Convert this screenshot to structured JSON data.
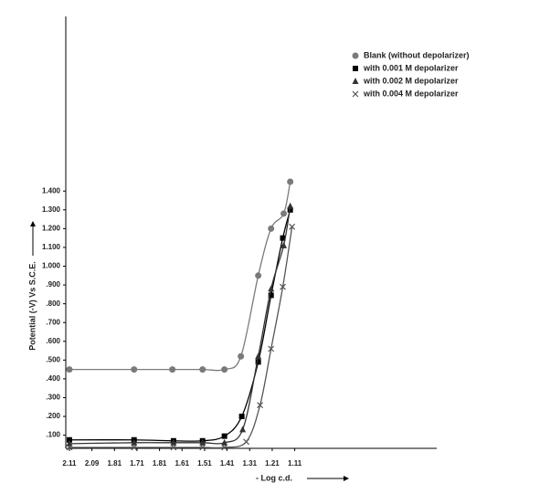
{
  "chart_data": {
    "type": "line",
    "x_label": "- Log c.d.",
    "y_label": "Potential (-V) Vs S.C.E.",
    "xlim": [
      -0.16,
      16.3
    ],
    "ylim": [
      0.03,
      2.33
    ],
    "xticks": [
      {
        "value": 0,
        "label": "2.11"
      },
      {
        "value": 1,
        "label": "2.09"
      },
      {
        "value": 2,
        "label": "1.81"
      },
      {
        "value": 3,
        "label": "1.71"
      },
      {
        "value": 4,
        "label": "1.81"
      },
      {
        "value": 5,
        "label": "1.61"
      },
      {
        "value": 6,
        "label": "1.51"
      },
      {
        "value": 7,
        "label": "1.41"
      },
      {
        "value": 8,
        "label": "1.31"
      },
      {
        "value": 9,
        "label": "1.21"
      },
      {
        "value": 10,
        "label": "1.11"
      }
    ],
    "yticks": [
      {
        "value": 0.1,
        "label": ".100"
      },
      {
        "value": 0.2,
        "label": ".200"
      },
      {
        "value": 0.3,
        "label": ".300"
      },
      {
        "value": 0.4,
        "label": ".400"
      },
      {
        "value": 0.5,
        "label": ".500"
      },
      {
        "value": 0.6,
        "label": ".600"
      },
      {
        "value": 0.7,
        "label": ".700"
      },
      {
        "value": 0.8,
        "label": ".800"
      },
      {
        "value": 0.9,
        "label": ".900"
      },
      {
        "value": 1.0,
        "label": "1.000"
      },
      {
        "value": 1.1,
        "label": "1.100"
      },
      {
        "value": 1.2,
        "label": "1.200"
      },
      {
        "value": 1.3,
        "label": "1.300"
      },
      {
        "value": 1.4,
        "label": "1.400"
      }
    ],
    "series": [
      {
        "name": "Blank (without depolarizer)",
        "color": "#7a7a7a",
        "marker": "circle",
        "x": [
          0,
          2.87,
          4.57,
          5.91,
          6.88,
          7.61,
          8.38,
          8.95,
          9.51,
          9.8
        ],
        "values": [
          0.45,
          0.45,
          0.45,
          0.45,
          0.45,
          0.52,
          0.95,
          1.2,
          1.28,
          1.45
        ]
      },
      {
        "name": "with 0.001 M depolarizer",
        "color": "#000000",
        "marker": "square",
        "x": [
          0,
          2.87,
          4.62,
          5.91,
          6.88,
          7.65,
          8.38,
          8.95,
          9.47,
          9.8
        ],
        "values": [
          0.075,
          0.075,
          0.07,
          0.07,
          0.095,
          0.2,
          0.49,
          0.845,
          1.15,
          1.3
        ]
      },
      {
        "name": "with 0.002 M depolarizer",
        "color": "#333333",
        "marker": "triangle",
        "x": [
          0,
          2.87,
          4.62,
          5.91,
          6.88,
          7.69,
          8.38,
          8.95,
          9.51,
          9.8
        ],
        "values": [
          0.055,
          0.06,
          0.06,
          0.06,
          0.06,
          0.13,
          0.52,
          0.88,
          1.11,
          1.32
        ]
      },
      {
        "name": "with 0.004 M depolarizer",
        "color": "#555555",
        "marker": "cross",
        "x": [
          0,
          2.87,
          4.62,
          5.91,
          6.88,
          7.85,
          8.46,
          8.95,
          9.47,
          9.88
        ],
        "values": [
          0.035,
          0.035,
          0.035,
          0.035,
          0.035,
          0.065,
          0.26,
          0.56,
          0.89,
          1.21
        ]
      }
    ]
  }
}
